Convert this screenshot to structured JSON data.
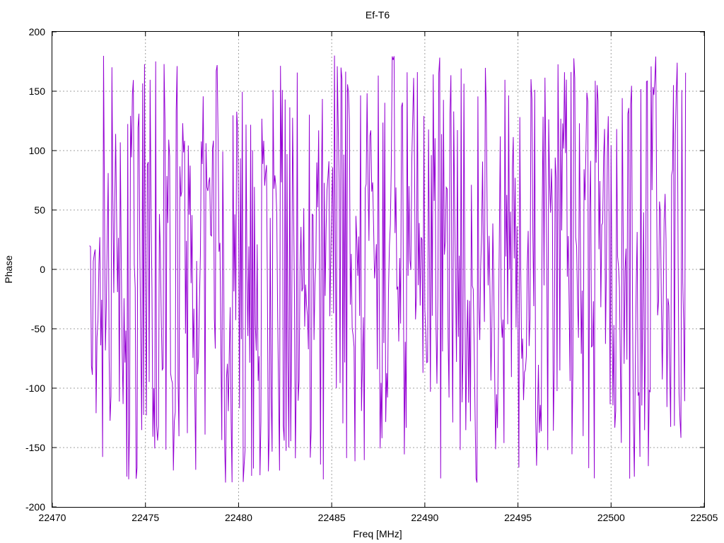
{
  "chart_data": {
    "type": "line",
    "title": "Ef-T6",
    "xlabel": "Freq [MHz]",
    "ylabel": "Phase",
    "xlim": [
      22470,
      22505
    ],
    "ylim": [
      -200,
      200
    ],
    "xticks": [
      22470,
      22475,
      22480,
      22485,
      22490,
      22495,
      22500,
      22505
    ],
    "yticks": [
      -200,
      -150,
      -100,
      -50,
      0,
      50,
      100,
      150,
      200
    ],
    "grid": true,
    "series": [
      {
        "color": "#9400d3",
        "x_start": 22472.0,
        "x_end": 22504.0,
        "x_step": 0.05,
        "phase_cycles_per_mhz": 17.5,
        "y_range": [
          -180,
          180
        ],
        "note_sampled": "wrapped phase oscillating between -180 and 180 across the band"
      }
    ]
  }
}
